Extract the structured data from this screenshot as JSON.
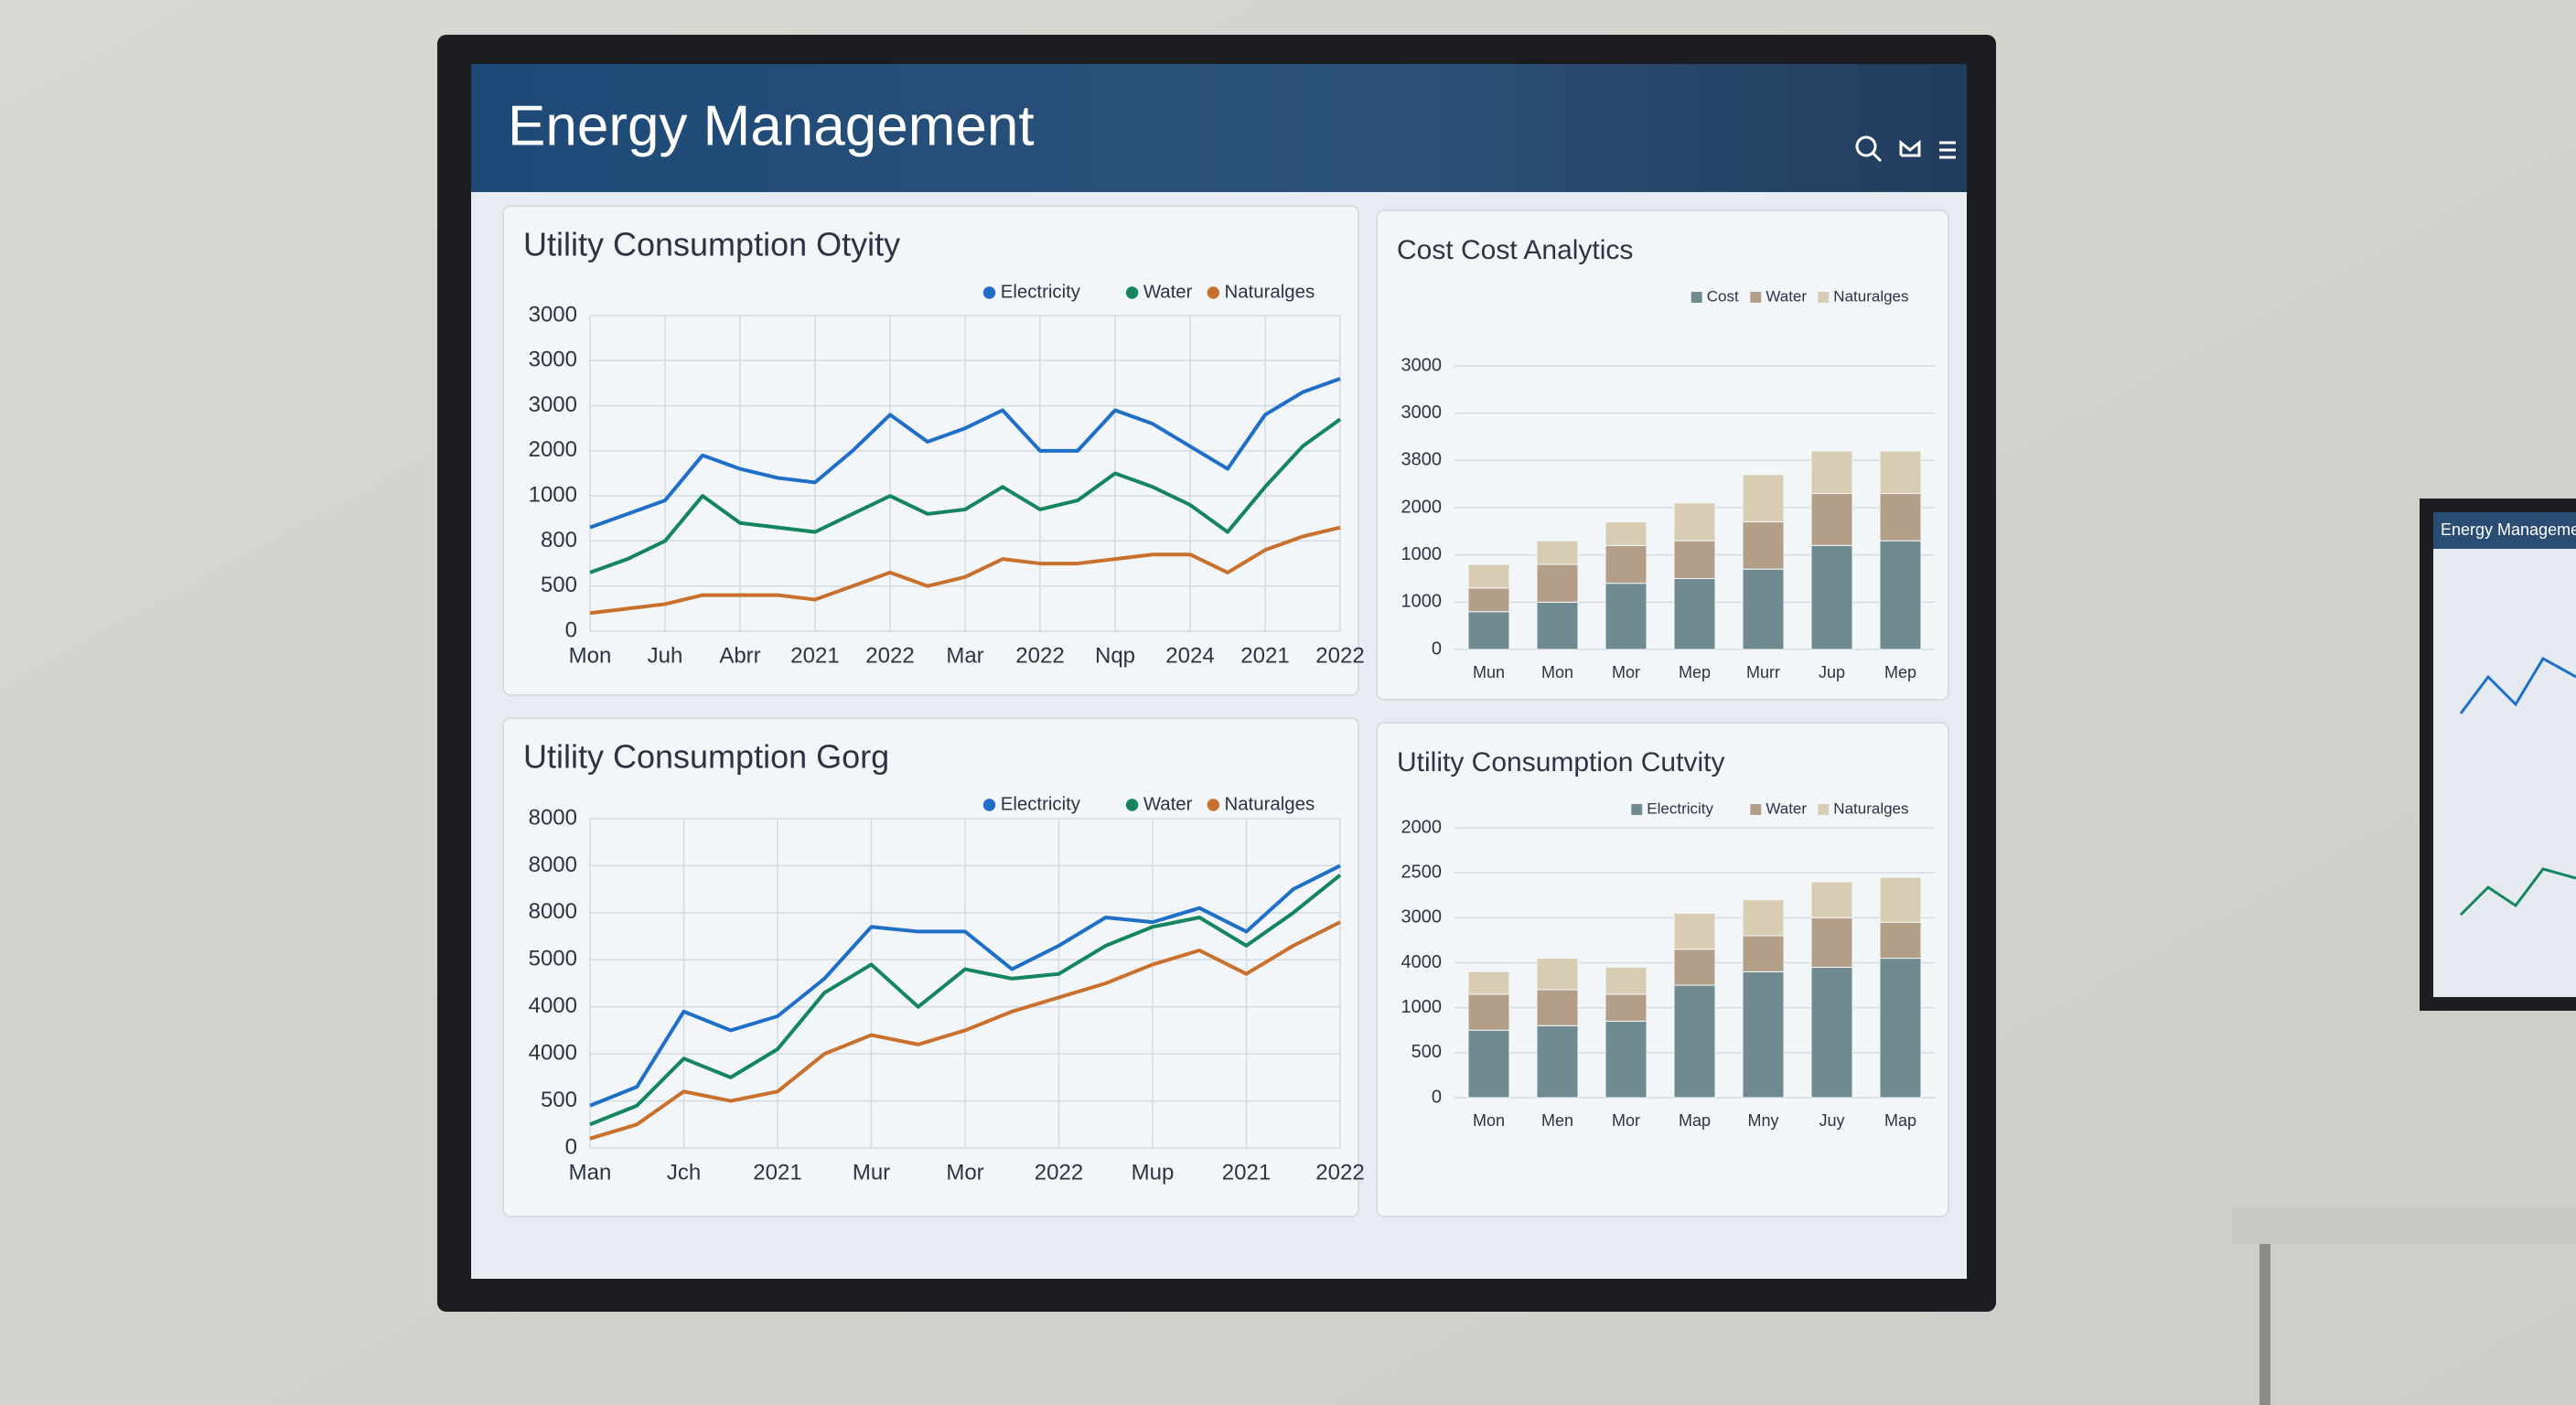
{
  "header": {
    "title": "Energy Management"
  },
  "side_monitor": {
    "title": "Energy Management"
  },
  "chart_data": [
    {
      "type": "line",
      "title": "Utility Consumption Otyity",
      "categories": [
        "Mon",
        null,
        "Juh",
        null,
        "Abrr",
        null,
        "2021",
        null,
        "2022",
        null,
        "Mar",
        null,
        "2022",
        null,
        "Nqp",
        null,
        "2024",
        null,
        "2021",
        null,
        "2022"
      ],
      "series": [
        {
          "name": "Electricity",
          "color": "#1f6fc8",
          "values": [
            2.3,
            2.6,
            2.9,
            3.9,
            3.6,
            3.4,
            3.3,
            4.0,
            4.8,
            4.2,
            4.5,
            4.9,
            4.0,
            4.0,
            4.9,
            4.6,
            4.1,
            3.6,
            4.8,
            5.3,
            5.6
          ]
        },
        {
          "name": "Water",
          "color": "#14855f",
          "values": [
            1.3,
            1.6,
            2.0,
            3.0,
            2.4,
            2.3,
            2.2,
            2.6,
            3.0,
            2.6,
            2.7,
            3.2,
            2.7,
            2.9,
            3.5,
            3.2,
            2.8,
            2.2,
            3.2,
            4.1,
            4.7
          ]
        },
        {
          "name": "Naturalges",
          "color": "#c8702c",
          "values": [
            0.4,
            0.5,
            0.6,
            0.8,
            0.8,
            0.8,
            0.7,
            1.0,
            1.3,
            1.0,
            1.2,
            1.6,
            1.5,
            1.5,
            1.6,
            1.7,
            1.7,
            1.3,
            1.8,
            2.1,
            2.3
          ]
        }
      ],
      "ylim": [
        0,
        7
      ],
      "yticks": [
        {
          "value": 0,
          "label": "0"
        },
        {
          "value": 1,
          "label": "500"
        },
        {
          "value": 2,
          "label": "800"
        },
        {
          "value": 3,
          "label": "1000"
        },
        {
          "value": 4,
          "label": "2000"
        },
        {
          "value": 5,
          "label": "3000"
        },
        {
          "value": 6,
          "label": "3000"
        },
        {
          "value": 7,
          "label": "3000"
        }
      ],
      "grid": true
    },
    {
      "type": "stacked_bar",
      "title": "Cost Cost Analytics",
      "categories": [
        "Mun",
        "Mon",
        "Mor",
        "Mep",
        "Murr",
        "Jup",
        "Mep"
      ],
      "series": [
        {
          "name": "Cost",
          "color": "#6f8a90",
          "values": [
            0.8,
            1.0,
            1.4,
            1.5,
            1.7,
            2.2,
            2.3
          ]
        },
        {
          "name": "Water",
          "color": "#b39f88",
          "values": [
            0.5,
            0.8,
            0.8,
            0.8,
            1.0,
            1.1,
            1.0
          ]
        },
        {
          "name": "Naturalges",
          "color": "#d8cdb2",
          "values": [
            0.5,
            0.5,
            0.5,
            0.8,
            1.0,
            0.9,
            0.9
          ]
        }
      ],
      "ylim": [
        0,
        6
      ],
      "yticks": [
        {
          "value": 0,
          "label": "0"
        },
        {
          "value": 1,
          "label": "1000"
        },
        {
          "value": 2,
          "label": "1000"
        },
        {
          "value": 3,
          "label": "2000"
        },
        {
          "value": 4,
          "label": "3800"
        },
        {
          "value": 5,
          "label": "3000"
        },
        {
          "value": 6,
          "label": "3000"
        }
      ],
      "grid": true
    },
    {
      "type": "line",
      "title": "Utility Consumption Gorg",
      "categories": [
        "Man",
        null,
        "Jch",
        null,
        "2021",
        null,
        "Mur",
        null,
        "Mor",
        null,
        "2022",
        null,
        "Mup",
        null,
        "2021",
        null,
        "2022"
      ],
      "series": [
        {
          "name": "Electricity",
          "color": "#1f6fc8",
          "values": [
            0.9,
            1.3,
            2.9,
            2.5,
            2.8,
            3.6,
            4.7,
            4.6,
            4.6,
            3.8,
            4.3,
            4.9,
            4.8,
            5.1,
            4.6,
            5.5,
            6.0
          ]
        },
        {
          "name": "Water",
          "color": "#14855f",
          "values": [
            0.5,
            0.9,
            1.9,
            1.5,
            2.1,
            3.3,
            3.9,
            3.0,
            3.8,
            3.6,
            3.7,
            4.3,
            4.7,
            4.9,
            4.3,
            5.0,
            5.8
          ]
        },
        {
          "name": "Naturalges",
          "color": "#c8702c",
          "values": [
            0.2,
            0.5,
            1.2,
            1.0,
            1.2,
            2.0,
            2.4,
            2.2,
            2.5,
            2.9,
            3.2,
            3.5,
            3.9,
            4.2,
            3.7,
            4.3,
            4.8
          ]
        }
      ],
      "ylim": [
        0,
        7
      ],
      "yticks": [
        {
          "value": 0,
          "label": "0"
        },
        {
          "value": 1,
          "label": "500"
        },
        {
          "value": 2,
          "label": "4000"
        },
        {
          "value": 3,
          "label": "4000"
        },
        {
          "value": 4,
          "label": "5000"
        },
        {
          "value": 5,
          "label": "8000"
        },
        {
          "value": 6,
          "label": "8000"
        },
        {
          "value": 7,
          "label": "8000"
        }
      ],
      "grid": true
    },
    {
      "type": "stacked_bar",
      "title": "Utility Consumption Cutvity",
      "categories": [
        "Mon",
        "Men",
        "Mor",
        "Map",
        "Mny",
        "Juy",
        "Map"
      ],
      "series": [
        {
          "name": "Electricity",
          "color": "#6f8a90",
          "values": [
            1.5,
            1.6,
            1.7,
            2.5,
            2.8,
            2.9,
            3.1
          ]
        },
        {
          "name": "Water",
          "color": "#b39f88",
          "values": [
            0.8,
            0.8,
            0.6,
            0.8,
            0.8,
            1.1,
            0.8
          ]
        },
        {
          "name": "Naturalges",
          "color": "#d8cdb2",
          "values": [
            0.5,
            0.7,
            0.6,
            0.8,
            0.8,
            0.8,
            1.0
          ]
        }
      ],
      "ylim": [
        0,
        6
      ],
      "yticks": [
        {
          "value": 0,
          "label": "0"
        },
        {
          "value": 1,
          "label": "500"
        },
        {
          "value": 2,
          "label": "1000"
        },
        {
          "value": 3,
          "label": "4000"
        },
        {
          "value": 4,
          "label": "3000"
        },
        {
          "value": 5,
          "label": "2500"
        },
        {
          "value": 6,
          "label": "2000"
        }
      ],
      "grid": true
    }
  ]
}
